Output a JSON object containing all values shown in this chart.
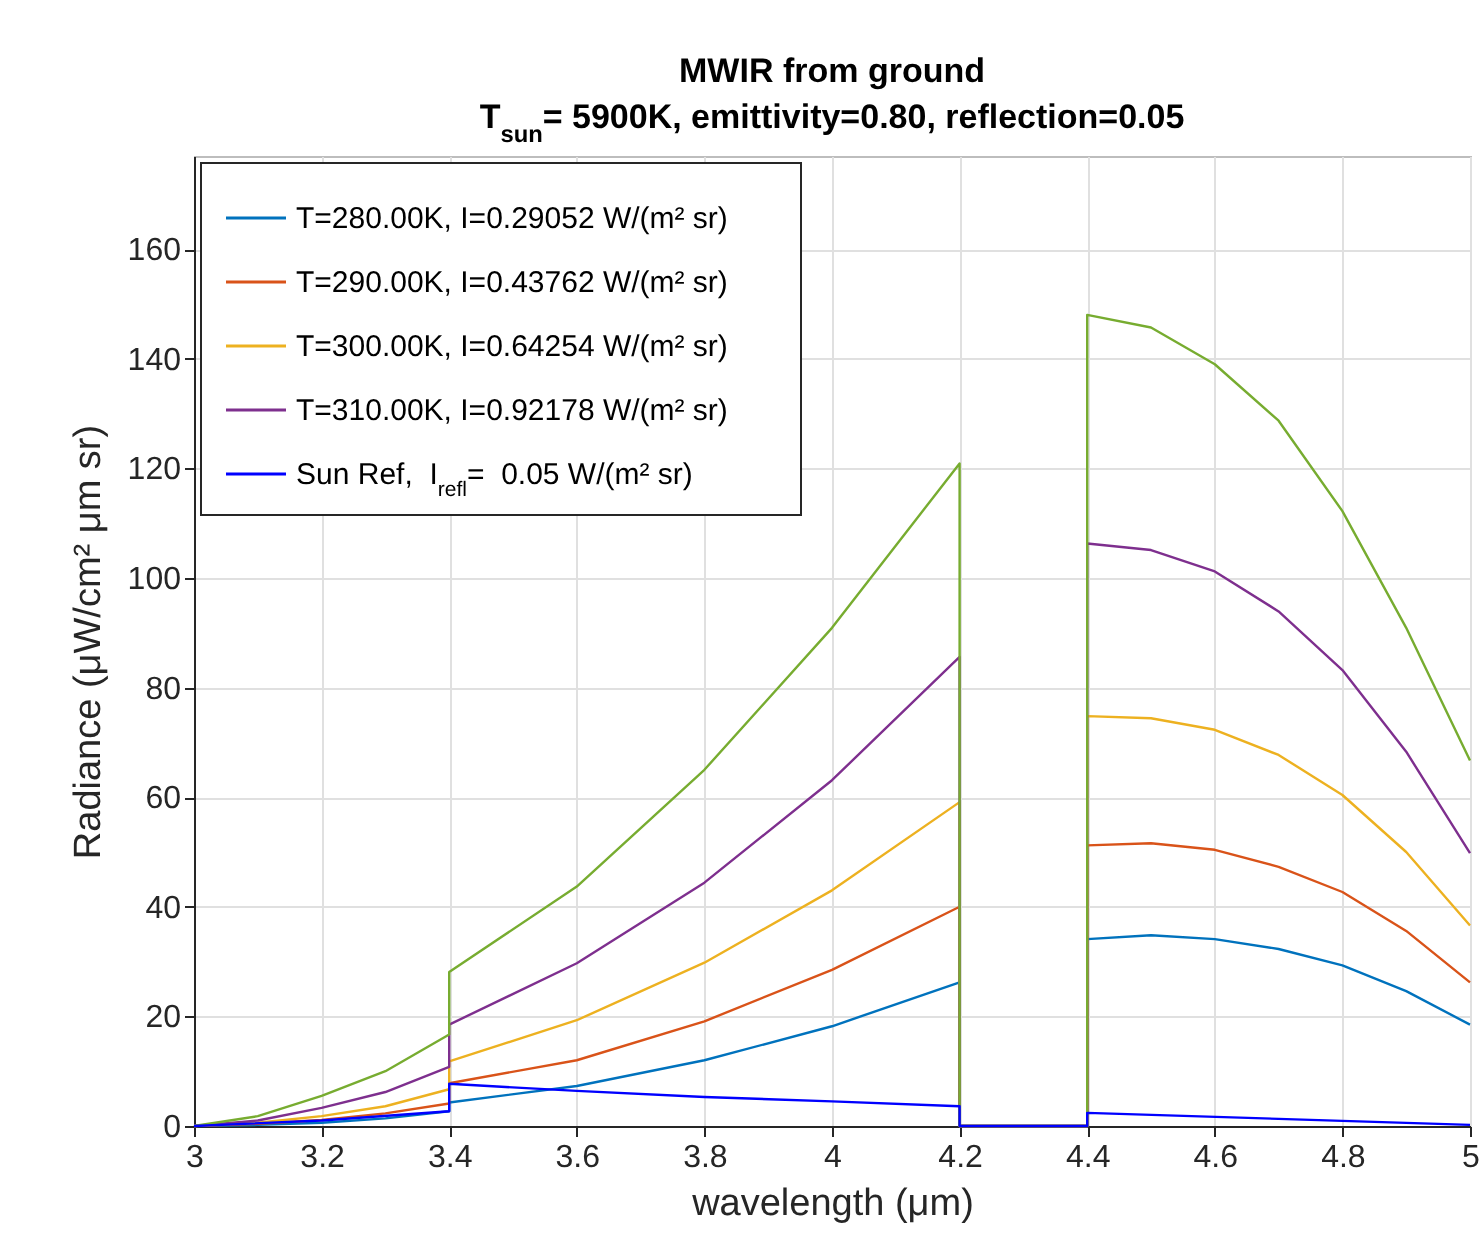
{
  "chart_data": {
    "type": "line",
    "title": "MWIR from ground",
    "subtitle": "T$_{sun}$= 5900K, emittivity=0.80, reflection=0.05",
    "xlabel": "wavelength (μm)",
    "ylabel": "Radiance (μW/cm² μm sr)",
    "xlim": [
      3,
      5
    ],
    "xticks": [
      3,
      3.2,
      3.4,
      3.6,
      3.8,
      4,
      4.2,
      4.4,
      4.6,
      4.8,
      5
    ],
    "ylim": [
      0,
      177
    ],
    "yticks": [
      0,
      20,
      40,
      60,
      80,
      100,
      120,
      140,
      160
    ],
    "grid": true,
    "legend": "top left",
    "line_style": "solid",
    "series": [
      {
        "name": "T=280.00K, I=0.29052 W/(m² sr)",
        "color": "#0072bd",
        "x": [
          3,
          3.1,
          3.2,
          3.3,
          3.4,
          3.4,
          3.6,
          3.8,
          4,
          4.2,
          4.2,
          4.4,
          4.4,
          4.5,
          4.6,
          4.7,
          4.8,
          4.9,
          5
        ],
        "values": [
          0,
          0.2,
          0.6,
          1.4,
          2.7,
          4.3,
          7.3,
          12,
          18.2,
          26.2,
          0,
          0,
          34.1,
          34.8,
          34.1,
          32.3,
          29.3,
          24.6,
          18.5
        ]
      },
      {
        "name": "T=290.00K, I=0.43762 W/(m² sr)",
        "color": "#d95319",
        "x": [
          3,
          3.1,
          3.2,
          3.3,
          3.4,
          3.4,
          3.6,
          3.8,
          4,
          4.2,
          4.2,
          4.4,
          4.4,
          4.5,
          4.6,
          4.7,
          4.8,
          4.9,
          5
        ],
        "values": [
          0,
          0.4,
          1.1,
          2.3,
          4.1,
          7.8,
          12,
          19.1,
          28.5,
          40,
          0,
          0,
          51.2,
          51.6,
          50.4,
          47.3,
          42.7,
          35.6,
          26.2
        ]
      },
      {
        "name": "T=300.00K, I=0.64254 W/(m² sr)",
        "color": "#edb120",
        "x": [
          3,
          3.1,
          3.2,
          3.3,
          3.4,
          3.4,
          3.6,
          3.8,
          4,
          4.2,
          4.2,
          4.4,
          4.4,
          4.5,
          4.6,
          4.7,
          4.8,
          4.9,
          5
        ],
        "values": [
          0,
          0.6,
          1.8,
          3.6,
          6.7,
          11.8,
          19.3,
          29.8,
          43,
          59.1,
          0,
          0,
          74.8,
          74.4,
          72.3,
          67.7,
          60.4,
          50,
          36.6
        ]
      },
      {
        "name": "T=310.00K, I=0.92178 W/(m² sr)",
        "color": "#7e2f8e",
        "x": [
          3,
          3.1,
          3.2,
          3.3,
          3.4,
          3.4,
          3.6,
          3.8,
          4,
          4.2,
          4.2,
          4.4,
          4.4,
          4.5,
          4.6,
          4.7,
          4.8,
          4.9,
          5
        ],
        "values": [
          0,
          1,
          3.3,
          6.2,
          10.8,
          18.5,
          29.7,
          44.4,
          63.1,
          85.6,
          0,
          0,
          106.3,
          105.1,
          101.2,
          93.9,
          83.2,
          68.3,
          49.8
        ]
      },
      {
        "color": "#77ac30",
        "x": [
          3,
          3.1,
          3.2,
          3.3,
          3.4,
          3.4,
          3.6,
          3.8,
          4,
          4.2,
          4.2,
          4.4,
          4.4,
          4.5,
          4.6,
          4.7,
          4.8,
          4.9,
          5
        ],
        "values": [
          0,
          1.8,
          5.5,
          10,
          16.7,
          28.1,
          43.7,
          65,
          90.9,
          120.9,
          0,
          0,
          148,
          145.7,
          139,
          128.7,
          112.2,
          90.9,
          66.7
        ]
      },
      {
        "name": "Sun Ref,  I$_{refl}$=  0.05 W/(m² sr)",
        "color": "#0000ff",
        "x": [
          3,
          3.2,
          3.4,
          3.4,
          3.6,
          3.8,
          4,
          4.2,
          4.2,
          4.4,
          4.4,
          4.7,
          5
        ],
        "values": [
          0,
          1,
          2.7,
          7.7,
          6.4,
          5.3,
          4.5,
          3.6,
          0,
          0,
          2.4,
          1.3,
          0.2
        ]
      }
    ]
  }
}
